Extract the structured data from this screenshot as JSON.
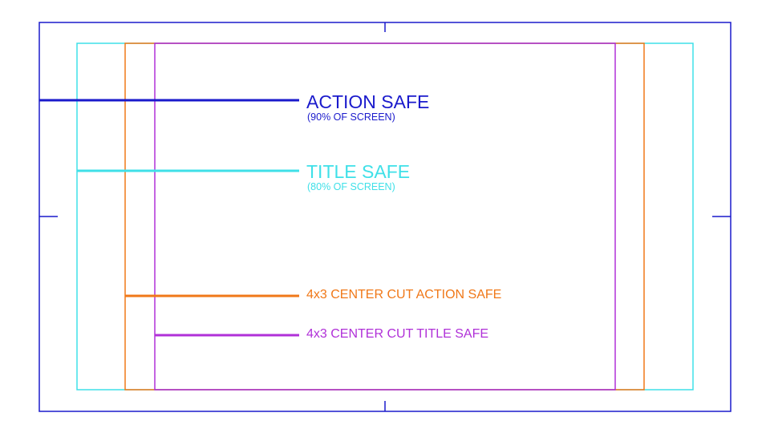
{
  "colors": {
    "action_safe": "#1a1acc",
    "title_safe": "#3fe0e8",
    "center_cut_action_safe": "#f07818",
    "center_cut_title_safe": "#b030d8"
  },
  "labels": {
    "action_safe": {
      "title": "ACTION SAFE",
      "subtitle": "(90% OF SCREEN)"
    },
    "title_safe": {
      "title": "TITLE SAFE",
      "subtitle": "(80% OF SCREEN)"
    },
    "center_cut_action_safe": {
      "title": "4x3 CENTER CUT ACTION SAFE"
    },
    "center_cut_title_safe": {
      "title": "4x3 CENTER CUT TITLE SAFE"
    }
  }
}
